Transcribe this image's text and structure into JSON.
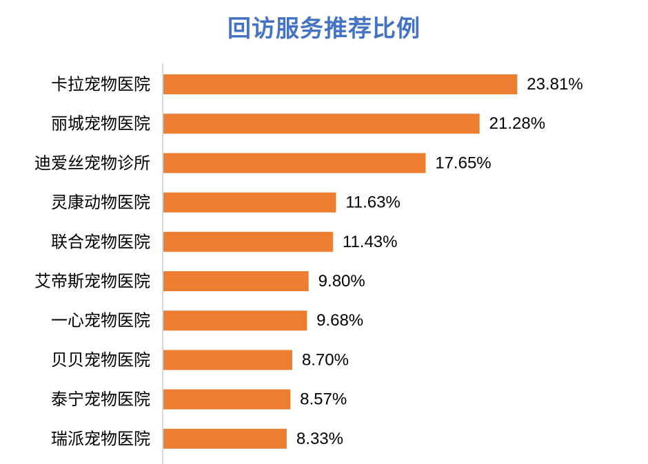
{
  "chart_data": {
    "type": "bar",
    "orientation": "horizontal",
    "title": "回访服务推荐比例",
    "categories": [
      "卡拉宠物医院",
      "丽城宠物医院",
      "迪爱丝宠物诊所",
      "灵康动物医院",
      "联合宠物医院",
      "艾帝斯宠物医院",
      "一心宠物医院",
      "贝贝宠物医院",
      "泰宁宠物医院",
      "瑞派宠物医院"
    ],
    "values": [
      23.81,
      21.28,
      17.65,
      11.63,
      11.43,
      9.8,
      9.68,
      8.7,
      8.57,
      8.33
    ],
    "data_labels": [
      "23.81%",
      "21.28%",
      "17.65%",
      "11.63%",
      "11.43%",
      "9.80%",
      "9.68%",
      "8.70%",
      "8.57%",
      "8.33%"
    ],
    "xlim": [
      0,
      25
    ],
    "unit": "%",
    "bar_color": "#ED7D31",
    "title_color": "#4472C4",
    "axis_color": "#D9D9D9",
    "grid": false,
    "legend": "none"
  }
}
